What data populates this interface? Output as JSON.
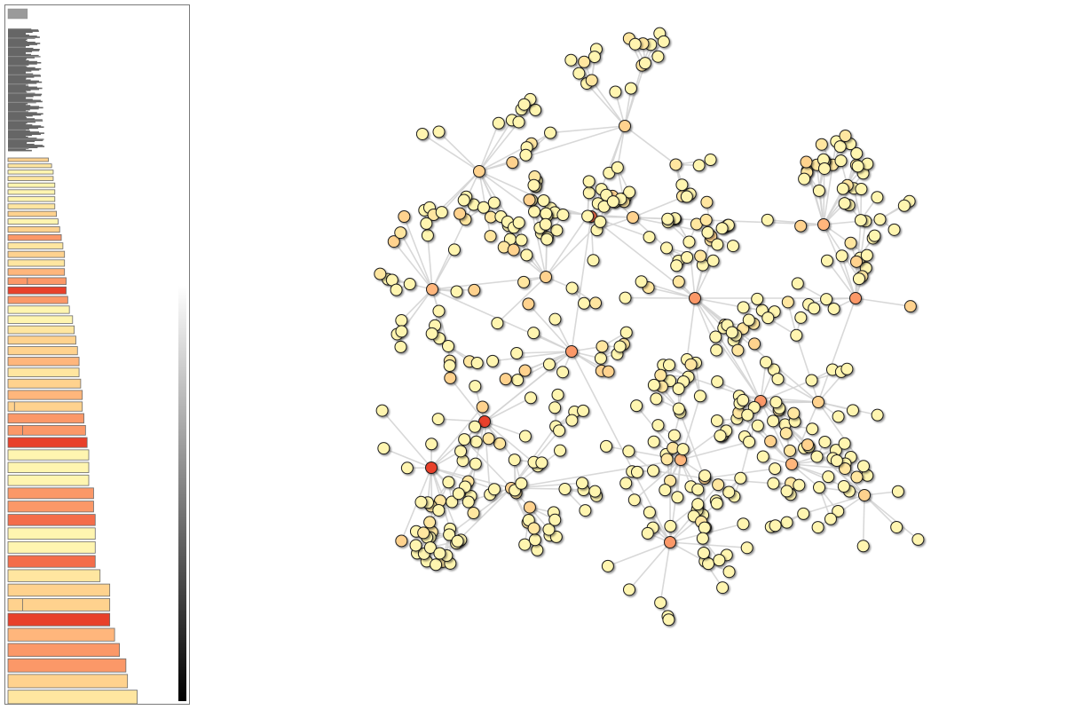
{
  "colors": {
    "heat_scale": [
      "#fff5b0",
      "#ffe6a0",
      "#ffd28e",
      "#ffb67c",
      "#fb9868",
      "#f46d4a",
      "#e8402a"
    ],
    "gray_bar": "#666666",
    "edge": "#d4d4d4",
    "node_stroke": "#1a1a1a"
  },
  "bar_panel": {
    "gray_bar_count": 12,
    "gray_value_bar": 0.12,
    "gray_top_value": 0.17,
    "colored_bars": [
      {
        "v": 0.25,
        "c": 2
      },
      {
        "v": 0.27,
        "c": 1
      },
      {
        "v": 0.28,
        "c": 0
      },
      {
        "v": 0.28,
        "c": 1
      },
      {
        "v": 0.29,
        "c": 0
      },
      {
        "v": 0.29,
        "c": 0
      },
      {
        "v": 0.29,
        "c": 0
      },
      {
        "v": 0.29,
        "c": 1
      },
      {
        "v": 0.3,
        "c": 2
      },
      {
        "v": 0.31,
        "c": 0
      },
      {
        "v": 0.32,
        "c": 2
      },
      {
        "v": 0.33,
        "c": 4
      },
      {
        "v": 0.34,
        "c": 1
      },
      {
        "v": 0.35,
        "c": 2
      },
      {
        "v": 0.35,
        "c": 1
      },
      {
        "v": 0.35,
        "c": 3
      },
      {
        "v": 0.36,
        "c": 4,
        "split": 0.12
      },
      {
        "v": 0.36,
        "c": 6
      },
      {
        "v": 0.37,
        "c": 4
      },
      {
        "v": 0.38,
        "c": 0
      },
      {
        "v": 0.4,
        "c": 0
      },
      {
        "v": 0.41,
        "c": 1
      },
      {
        "v": 0.42,
        "c": 2
      },
      {
        "v": 0.43,
        "c": 2
      },
      {
        "v": 0.44,
        "c": 3
      },
      {
        "v": 0.44,
        "c": 1
      },
      {
        "v": 0.45,
        "c": 2
      },
      {
        "v": 0.46,
        "c": 3
      },
      {
        "v": 0.46,
        "c": 2,
        "split": 0.04
      },
      {
        "v": 0.47,
        "c": 4
      },
      {
        "v": 0.48,
        "c": 4,
        "split": 0.09
      },
      {
        "v": 0.49,
        "c": 6
      },
      {
        "v": 0.5,
        "c": 0
      },
      {
        "v": 0.5,
        "c": 0
      },
      {
        "v": 0.5,
        "c": 0
      },
      {
        "v": 0.53,
        "c": 4
      },
      {
        "v": 0.53,
        "c": 4
      },
      {
        "v": 0.54,
        "c": 5
      },
      {
        "v": 0.54,
        "c": 0
      },
      {
        "v": 0.54,
        "c": 0
      },
      {
        "v": 0.54,
        "c": 5
      },
      {
        "v": 0.57,
        "c": 1
      },
      {
        "v": 0.63,
        "c": 2
      },
      {
        "v": 0.63,
        "c": 2,
        "split": 0.09
      },
      {
        "v": 0.63,
        "c": 6
      },
      {
        "v": 0.66,
        "c": 3
      },
      {
        "v": 0.69,
        "c": 4
      },
      {
        "v": 0.73,
        "c": 4
      },
      {
        "v": 0.74,
        "c": 2
      },
      {
        "v": 0.8,
        "c": 1
      },
      {
        "v": 0.88,
        "c": 6,
        "split": 0.24
      },
      {
        "v": 1.0,
        "c": 3,
        "split": 0.35
      }
    ]
  },
  "gradient_bar": {
    "top": "#ffffff",
    "bottom": "#000000"
  }
}
